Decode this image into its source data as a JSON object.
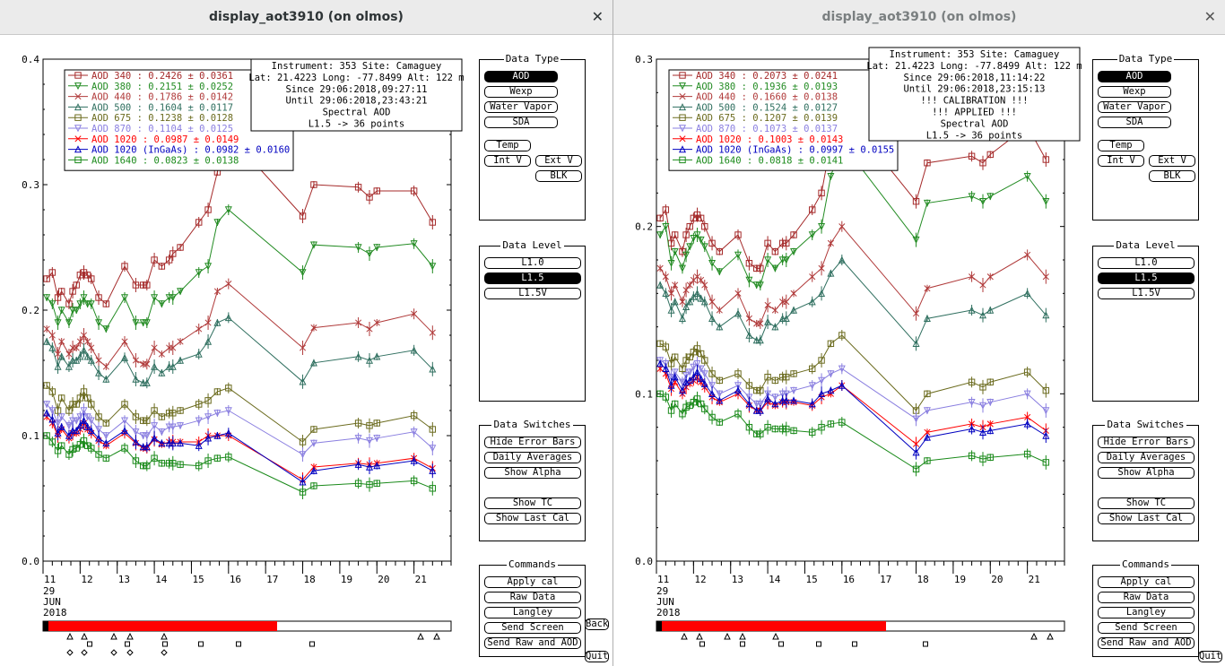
{
  "windows": [
    {
      "id": "left",
      "title": "display_aot3910 (on olmos)",
      "info": [
        "Instrument: 353 Site: Camaguey",
        "Lat: 21.4223 Long: -77.8499 Alt: 122 m",
        "Since 29:06:2018,09:27:11",
        "Until 29:06:2018,23:43:21",
        "Spectral AOD",
        "L1.5 -> 36 points"
      ],
      "legend": [
        {
          "label": "AOD 340    : 0.2426 ± 0.0361",
          "color": "#a52a2a",
          "marker": "square"
        },
        {
          "label": "AOD 380    : 0.2151 ± 0.0252",
          "color": "#228b22",
          "marker": "tri-down"
        },
        {
          "label": "AOD 440    : 0.1786 ± 0.0142",
          "color": "#b03a3a",
          "marker": "x"
        },
        {
          "label": "AOD 500    : 0.1604 ± 0.0117",
          "color": "#2f6f5f",
          "marker": "tri-up"
        },
        {
          "label": "AOD 675    : 0.1238 ± 0.0128",
          "color": "#6b6b1e",
          "marker": "square"
        },
        {
          "label": "AOD 870    : 0.1104 ± 0.0125",
          "color": "#8a7fe0",
          "marker": "tri-down"
        },
        {
          "label": "AOD 1020   : 0.0987 ± 0.0149",
          "color": "#ff0000",
          "marker": "x"
        },
        {
          "label": "AOD 1020 (InGaAs)   : 0.0982 ± 0.0160",
          "color": "#0000c0",
          "marker": "tri-up"
        },
        {
          "label": "AOD 1640   : 0.0823 ± 0.0138",
          "color": "#1a8a1a",
          "marker": "square"
        }
      ],
      "y_ticks": [
        "0.4",
        "0.3",
        "0.2",
        "0.1",
        "0.0"
      ]
    },
    {
      "id": "right",
      "title": "display_aot3910 (on olmos)",
      "info": [
        "Instrument: 353 Site: Camaguey",
        "Lat: 21.4223 Long: -77.8499 Alt: 122 m",
        "Since 29:06:2018,11:14:22",
        "Until 29:06:2018,23:15:13",
        "!!! CALIBRATION !!!",
        "!!!   APPLIED   !!!",
        "Spectral AOD",
        "L1.5 -> 36 points"
      ],
      "legend": [
        {
          "label": "AOD 340    : 0.2073 ± 0.0241",
          "color": "#a52a2a",
          "marker": "square"
        },
        {
          "label": "AOD 380    : 0.1936 ± 0.0193",
          "color": "#228b22",
          "marker": "tri-down"
        },
        {
          "label": "AOD 440    : 0.1660 ± 0.0138",
          "color": "#b03a3a",
          "marker": "x"
        },
        {
          "label": "AOD 500    : 0.1524 ± 0.0127",
          "color": "#2f6f5f",
          "marker": "tri-up"
        },
        {
          "label": "AOD 675    : 0.1207 ± 0.0139",
          "color": "#6b6b1e",
          "marker": "square"
        },
        {
          "label": "AOD 870    : 0.1073 ± 0.0137",
          "color": "#8a7fe0",
          "marker": "tri-down"
        },
        {
          "label": "AOD 1020   : 0.1003 ± 0.0143",
          "color": "#ff0000",
          "marker": "x"
        },
        {
          "label": "AOD 1020 (InGaAs)   : 0.0997 ± 0.0155",
          "color": "#0000c0",
          "marker": "tri-up"
        },
        {
          "label": "AOD 1640   : 0.0818 ± 0.0141",
          "color": "#1a8a1a",
          "marker": "square"
        }
      ],
      "y_ticks": [
        "0.3",
        "0.2",
        "0.1",
        "0.0"
      ]
    }
  ],
  "x_ticks": [
    "11",
    "12",
    "13",
    "14",
    "15",
    "16",
    "17",
    "18",
    "19",
    "20",
    "21"
  ],
  "date_lines": [
    "29",
    "JUN",
    "2018"
  ],
  "panels": {
    "data_type": {
      "title": "Data Type",
      "aod": "AOD",
      "wexp": "Wexp",
      "water_vapor": "Water Vapor",
      "sda": "SDA",
      "temp": "Temp",
      "int_v": "Int V",
      "ext_v": "Ext V",
      "blk": "BLK"
    },
    "data_level": {
      "title": "Data Level",
      "l10": "L1.0",
      "l15": "L1.5",
      "l15v": "L1.5V"
    },
    "data_switches": {
      "title": "Data Switches",
      "hide_error_bars": "Hide Error Bars",
      "daily_averages": "Daily Averages",
      "show_alpha": "Show Alpha",
      "show_tc": "Show TC",
      "show_last_cal": "Show Last Cal"
    },
    "commands": {
      "title": "Commands",
      "apply_cal": "Apply cal",
      "raw_data": "Raw Data",
      "langley": "Langley",
      "send_screen": "Send Screen",
      "send_raw_aod": "Send Raw and AOD"
    }
  },
  "back_label": "Back",
  "quit_label": "Quit",
  "chart_data": [
    {
      "type": "scatter",
      "title": "",
      "xlabel": "",
      "ylabel": "",
      "ylim": [
        0,
        0.4
      ],
      "xlim": [
        11,
        22
      ],
      "series_names": [
        "AOD 340",
        "AOD 380",
        "AOD 440",
        "AOD 500",
        "AOD 675",
        "AOD 870",
        "AOD 1020",
        "AOD 1020 (InGaAs)",
        "AOD 1640"
      ],
      "x": [
        11.1,
        11.25,
        11.4,
        11.5,
        11.7,
        11.8,
        11.9,
        12.0,
        12.1,
        12.2,
        12.3,
        12.5,
        12.7,
        13.2,
        13.5,
        13.7,
        13.8,
        14.0,
        14.2,
        14.4,
        14.5,
        14.7,
        15.2,
        15.45,
        15.7,
        16.0,
        18.0,
        18.3,
        19.5,
        19.8,
        20.0,
        21.0,
        21.5
      ],
      "series": [
        {
          "name": "AOD 340",
          "values": [
            0.225,
            0.23,
            0.21,
            0.215,
            0.205,
            0.215,
            0.22,
            0.228,
            0.23,
            0.228,
            0.225,
            0.21,
            0.205,
            0.235,
            0.22,
            0.22,
            0.22,
            0.24,
            0.235,
            0.24,
            0.245,
            0.25,
            0.27,
            0.28,
            0.31,
            0.34,
            0.275,
            0.3,
            0.298,
            0.29,
            0.295,
            0.295,
            0.27
          ]
        },
        {
          "name": "AOD 380",
          "values": [
            0.21,
            0.205,
            0.19,
            0.2,
            0.19,
            0.2,
            0.2,
            0.205,
            0.21,
            0.205,
            0.205,
            0.19,
            0.185,
            0.21,
            0.19,
            0.19,
            0.19,
            0.21,
            0.205,
            0.21,
            0.21,
            0.215,
            0.23,
            0.235,
            0.27,
            0.28,
            0.23,
            0.252,
            0.25,
            0.245,
            0.25,
            0.253,
            0.235
          ]
        },
        {
          "name": "AOD 440",
          "values": [
            0.185,
            0.18,
            0.165,
            0.175,
            0.165,
            0.17,
            0.17,
            0.175,
            0.18,
            0.175,
            0.17,
            0.16,
            0.155,
            0.175,
            0.16,
            0.157,
            0.157,
            0.17,
            0.165,
            0.17,
            0.17,
            0.175,
            0.185,
            0.19,
            0.215,
            0.221,
            0.17,
            0.186,
            0.19,
            0.185,
            0.19,
            0.197,
            0.182
          ]
        },
        {
          "name": "AOD 500",
          "values": [
            0.175,
            0.17,
            0.155,
            0.163,
            0.155,
            0.16,
            0.16,
            0.163,
            0.168,
            0.163,
            0.16,
            0.15,
            0.145,
            0.162,
            0.145,
            0.142,
            0.142,
            0.155,
            0.15,
            0.155,
            0.155,
            0.16,
            0.165,
            0.175,
            0.19,
            0.194,
            0.143,
            0.158,
            0.163,
            0.16,
            0.163,
            0.168,
            0.153
          ]
        },
        {
          "name": "AOD 675",
          "values": [
            0.14,
            0.135,
            0.12,
            0.13,
            0.12,
            0.125,
            0.125,
            0.13,
            0.135,
            0.13,
            0.125,
            0.115,
            0.11,
            0.125,
            0.115,
            0.112,
            0.112,
            0.12,
            0.115,
            0.118,
            0.118,
            0.12,
            0.125,
            0.128,
            0.135,
            0.138,
            0.095,
            0.105,
            0.11,
            0.108,
            0.11,
            0.116,
            0.105
          ]
        },
        {
          "name": "AOD 870",
          "values": [
            0.125,
            0.12,
            0.11,
            0.115,
            0.108,
            0.112,
            0.112,
            0.115,
            0.12,
            0.115,
            0.112,
            0.105,
            0.1,
            0.112,
            0.103,
            0.1,
            0.1,
            0.108,
            0.103,
            0.107,
            0.107,
            0.108,
            0.112,
            0.115,
            0.118,
            0.12,
            0.085,
            0.094,
            0.098,
            0.096,
            0.098,
            0.103,
            0.09
          ]
        },
        {
          "name": "AOD 1020",
          "values": [
            0.115,
            0.11,
            0.1,
            0.105,
            0.098,
            0.102,
            0.102,
            0.105,
            0.11,
            0.105,
            0.102,
            0.096,
            0.092,
            0.102,
            0.094,
            0.09,
            0.09,
            0.097,
            0.093,
            0.095,
            0.095,
            0.095,
            0.095,
            0.1,
            0.1,
            0.1,
            0.065,
            0.075,
            0.078,
            0.077,
            0.078,
            0.082,
            0.074
          ]
        },
        {
          "name": "AOD 1020 (InGaAs)",
          "values": [
            0.118,
            0.113,
            0.102,
            0.107,
            0.1,
            0.104,
            0.104,
            0.108,
            0.112,
            0.107,
            0.104,
            0.098,
            0.094,
            0.104,
            0.095,
            0.091,
            0.091,
            0.098,
            0.094,
            0.094,
            0.094,
            0.094,
            0.092,
            0.098,
            0.1,
            0.102,
            0.063,
            0.072,
            0.077,
            0.075,
            0.076,
            0.08,
            0.072
          ]
        },
        {
          "name": "AOD 1640",
          "values": [
            0.1,
            0.095,
            0.088,
            0.092,
            0.085,
            0.089,
            0.09,
            0.093,
            0.096,
            0.092,
            0.09,
            0.085,
            0.082,
            0.09,
            0.08,
            0.076,
            0.076,
            0.082,
            0.078,
            0.078,
            0.078,
            0.077,
            0.076,
            0.08,
            0.082,
            0.083,
            0.055,
            0.06,
            0.062,
            0.061,
            0.062,
            0.064,
            0.058
          ]
        }
      ]
    },
    {
      "type": "scatter",
      "title": "",
      "xlabel": "",
      "ylabel": "",
      "ylim": [
        0,
        0.3
      ],
      "xlim": [
        11,
        22
      ],
      "series_names": [
        "AOD 340",
        "AOD 380",
        "AOD 440",
        "AOD 500",
        "AOD 675",
        "AOD 870",
        "AOD 1020",
        "AOD 1020 (InGaAs)",
        "AOD 1640"
      ],
      "x": [
        11.1,
        11.25,
        11.4,
        11.5,
        11.7,
        11.8,
        11.9,
        12.0,
        12.1,
        12.2,
        12.3,
        12.5,
        12.7,
        13.2,
        13.5,
        13.7,
        13.8,
        14.0,
        14.2,
        14.4,
        14.5,
        14.7,
        15.2,
        15.45,
        15.7,
        16.0,
        18.0,
        18.3,
        19.5,
        19.8,
        20.0,
        21.0,
        21.5
      ],
      "series": [
        {
          "name": "AOD 340",
          "values": [
            0.205,
            0.21,
            0.19,
            0.195,
            0.185,
            0.195,
            0.2,
            0.205,
            0.207,
            0.205,
            0.2,
            0.19,
            0.185,
            0.195,
            0.178,
            0.175,
            0.175,
            0.19,
            0.185,
            0.19,
            0.19,
            0.195,
            0.21,
            0.22,
            0.25,
            0.27,
            0.215,
            0.238,
            0.242,
            0.238,
            0.243,
            0.26,
            0.24
          ]
        },
        {
          "name": "AOD 380",
          "values": [
            0.195,
            0.2,
            0.178,
            0.185,
            0.175,
            0.183,
            0.188,
            0.193,
            0.195,
            0.192,
            0.188,
            0.178,
            0.173,
            0.183,
            0.168,
            0.165,
            0.165,
            0.18,
            0.175,
            0.18,
            0.18,
            0.185,
            0.195,
            0.2,
            0.23,
            0.25,
            0.192,
            0.214,
            0.218,
            0.215,
            0.218,
            0.23,
            0.215
          ]
        },
        {
          "name": "AOD 440",
          "values": [
            0.175,
            0.17,
            0.16,
            0.165,
            0.155,
            0.162,
            0.165,
            0.168,
            0.17,
            0.168,
            0.165,
            0.155,
            0.15,
            0.16,
            0.145,
            0.142,
            0.142,
            0.153,
            0.15,
            0.155,
            0.155,
            0.16,
            0.17,
            0.175,
            0.19,
            0.2,
            0.148,
            0.163,
            0.17,
            0.165,
            0.17,
            0.183,
            0.17
          ]
        },
        {
          "name": "AOD 500",
          "values": [
            0.165,
            0.16,
            0.15,
            0.155,
            0.145,
            0.152,
            0.155,
            0.158,
            0.16,
            0.157,
            0.155,
            0.145,
            0.14,
            0.148,
            0.135,
            0.132,
            0.132,
            0.143,
            0.14,
            0.145,
            0.145,
            0.15,
            0.155,
            0.16,
            0.172,
            0.18,
            0.13,
            0.145,
            0.15,
            0.147,
            0.15,
            0.16,
            0.147
          ]
        },
        {
          "name": "AOD 675",
          "values": [
            0.13,
            0.128,
            0.118,
            0.122,
            0.115,
            0.12,
            0.122,
            0.125,
            0.127,
            0.124,
            0.12,
            0.112,
            0.108,
            0.112,
            0.105,
            0.102,
            0.102,
            0.11,
            0.108,
            0.11,
            0.11,
            0.112,
            0.115,
            0.12,
            0.13,
            0.135,
            0.09,
            0.1,
            0.107,
            0.104,
            0.107,
            0.113,
            0.102
          ]
        },
        {
          "name": "AOD 870",
          "values": [
            0.12,
            0.118,
            0.11,
            0.113,
            0.107,
            0.111,
            0.113,
            0.116,
            0.118,
            0.115,
            0.112,
            0.105,
            0.1,
            0.105,
            0.098,
            0.094,
            0.094,
            0.1,
            0.098,
            0.1,
            0.1,
            0.102,
            0.105,
            0.108,
            0.112,
            0.115,
            0.085,
            0.09,
            0.095,
            0.093,
            0.095,
            0.1,
            0.09
          ]
        },
        {
          "name": "AOD 1020",
          "values": [
            0.115,
            0.112,
            0.103,
            0.107,
            0.1,
            0.104,
            0.106,
            0.108,
            0.11,
            0.107,
            0.104,
            0.098,
            0.095,
            0.1,
            0.093,
            0.09,
            0.09,
            0.095,
            0.093,
            0.095,
            0.095,
            0.095,
            0.093,
            0.098,
            0.1,
            0.105,
            0.07,
            0.077,
            0.082,
            0.08,
            0.082,
            0.086,
            0.078
          ]
        },
        {
          "name": "AOD 1020 (InGaAs)",
          "values": [
            0.118,
            0.115,
            0.105,
            0.11,
            0.102,
            0.107,
            0.108,
            0.11,
            0.113,
            0.109,
            0.106,
            0.1,
            0.096,
            0.102,
            0.094,
            0.09,
            0.09,
            0.097,
            0.094,
            0.096,
            0.096,
            0.096,
            0.094,
            0.1,
            0.102,
            0.105,
            0.065,
            0.074,
            0.079,
            0.077,
            0.078,
            0.082,
            0.075
          ]
        },
        {
          "name": "AOD 1640",
          "values": [
            0.1,
            0.098,
            0.09,
            0.094,
            0.088,
            0.092,
            0.093,
            0.095,
            0.097,
            0.094,
            0.091,
            0.086,
            0.083,
            0.088,
            0.08,
            0.076,
            0.076,
            0.08,
            0.079,
            0.079,
            0.079,
            0.078,
            0.077,
            0.08,
            0.082,
            0.083,
            0.055,
            0.06,
            0.063,
            0.061,
            0.062,
            0.064,
            0.059
          ]
        }
      ]
    }
  ]
}
